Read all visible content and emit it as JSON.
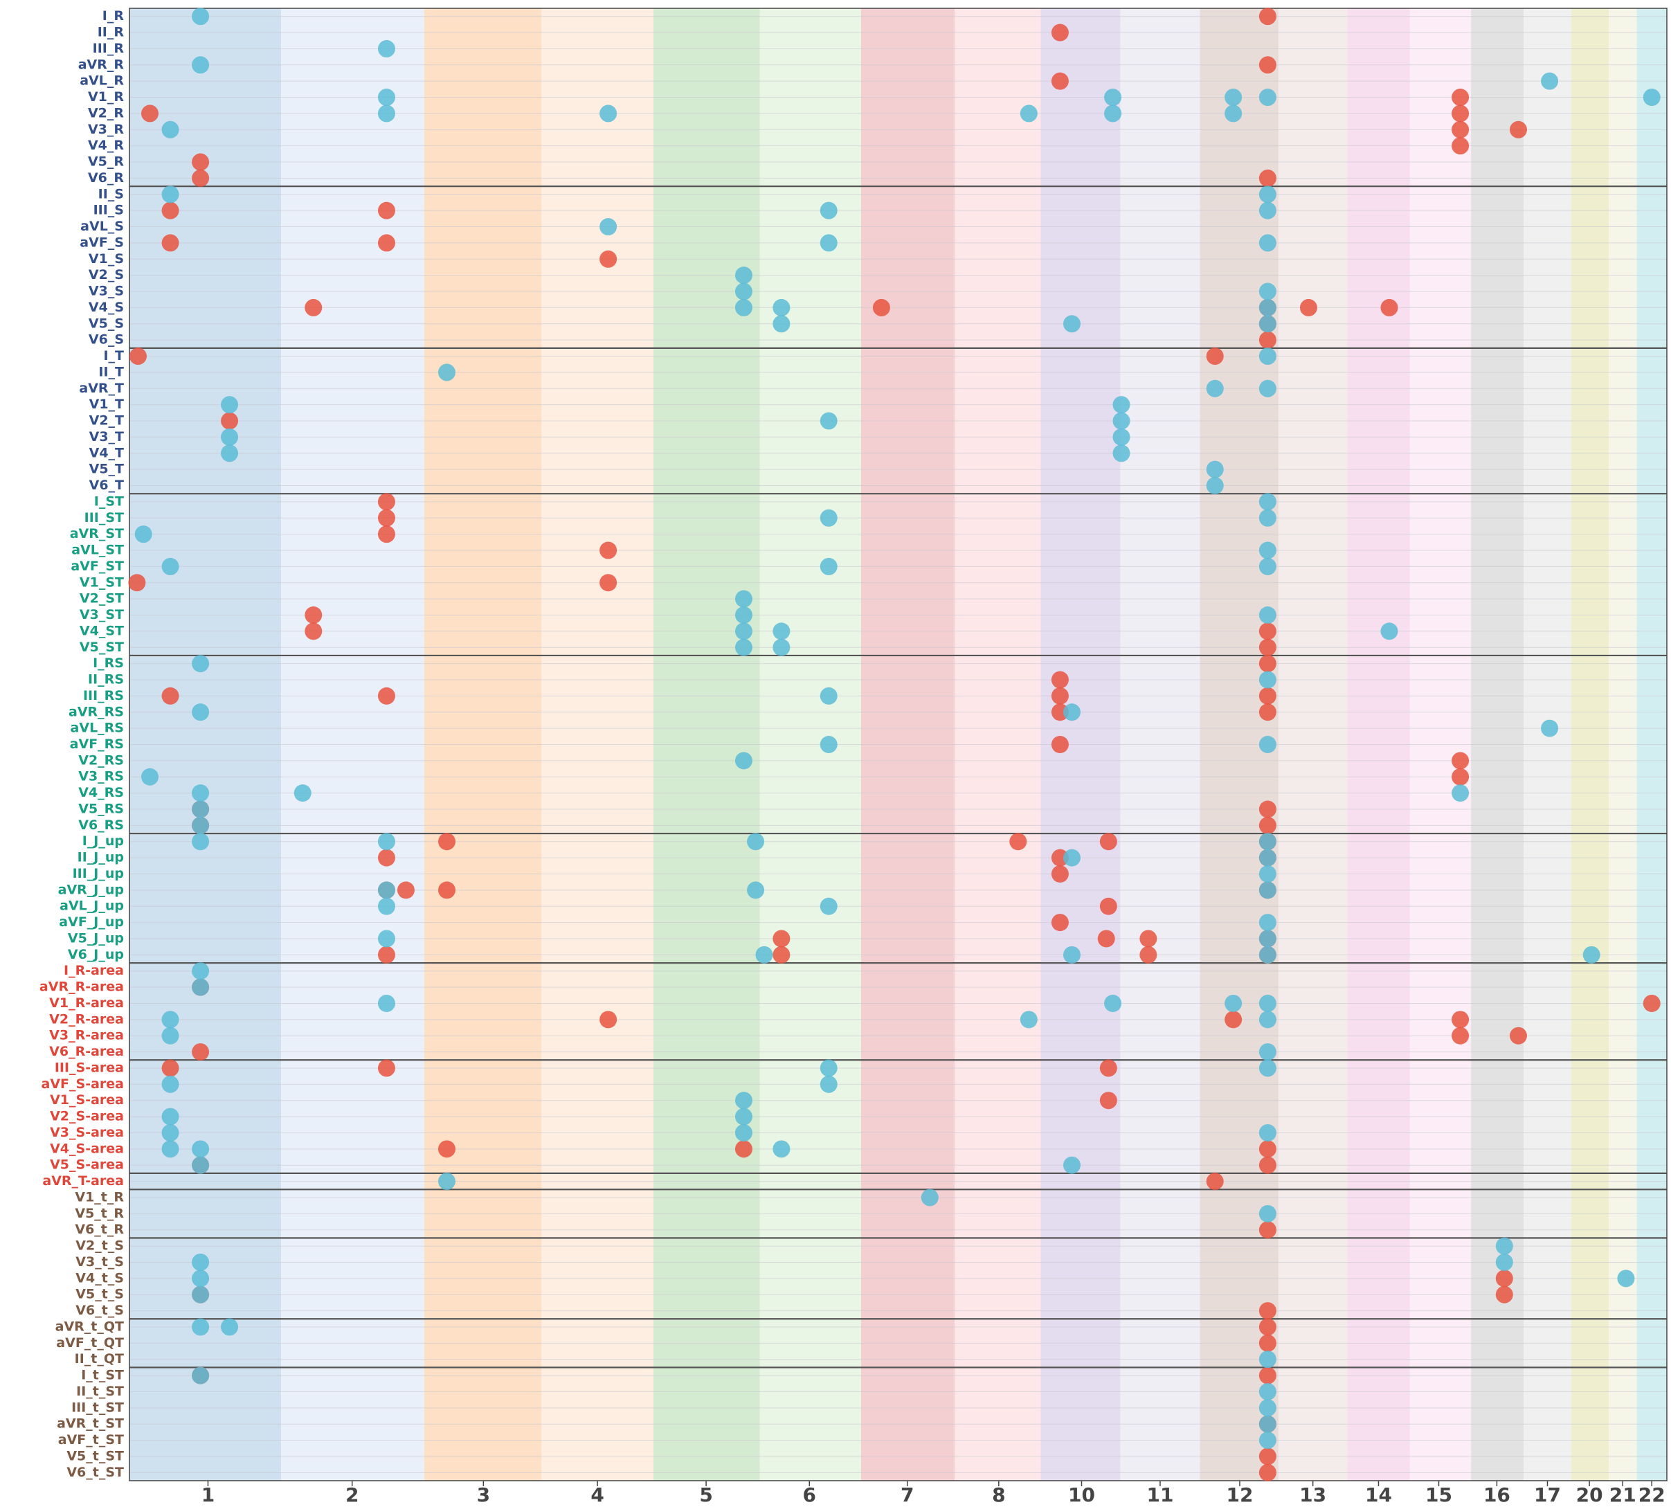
{
  "chart_data": {
    "type": "scatter",
    "xlim": [
      120,
      1549
    ],
    "xticks": [
      {
        "value": 193,
        "label": "1"
      },
      {
        "value": 327,
        "label": "2"
      },
      {
        "value": 449,
        "label": "3"
      },
      {
        "value": 555,
        "label": "4"
      },
      {
        "value": 656,
        "label": "5"
      },
      {
        "value": 752,
        "label": "6"
      },
      {
        "value": 843,
        "label": "7"
      },
      {
        "value": 928,
        "label": "8"
      },
      {
        "value": 1005,
        "label": "10"
      },
      {
        "value": 1078,
        "label": "11"
      },
      {
        "value": 1152,
        "label": "12"
      },
      {
        "value": 1220,
        "label": "13"
      },
      {
        "value": 1281,
        "label": "14"
      },
      {
        "value": 1337,
        "label": "15"
      },
      {
        "value": 1391,
        "label": "16"
      },
      {
        "value": 1438,
        "label": "17"
      },
      {
        "value": 1477,
        "label": "20"
      },
      {
        "value": 1508,
        "label": "21"
      },
      {
        "value": 1535,
        "label": "22"
      }
    ],
    "x_bands": [
      {
        "from": 120,
        "to": 261,
        "color": "#cfe0ef"
      },
      {
        "from": 261,
        "to": 394,
        "color": "#eaf0f9"
      },
      {
        "from": 394,
        "to": 503,
        "color": "#fde0c6"
      },
      {
        "from": 503,
        "to": 607,
        "color": "#fdeee1"
      },
      {
        "from": 607,
        "to": 706,
        "color": "#d5ebd1"
      },
      {
        "from": 706,
        "to": 800,
        "color": "#eaf6e5"
      },
      {
        "from": 800,
        "to": 887,
        "color": "#f4cfd1"
      },
      {
        "from": 887,
        "to": 967,
        "color": "#fde7e9"
      },
      {
        "from": 967,
        "to": 1041,
        "color": "#e4dcef"
      },
      {
        "from": 1041,
        "to": 1115,
        "color": "#f0eef5"
      },
      {
        "from": 1115,
        "to": 1188,
        "color": "#e8dcd9"
      },
      {
        "from": 1188,
        "to": 1252,
        "color": "#f3ecea"
      },
      {
        "from": 1252,
        "to": 1310,
        "color": "#f8dff0"
      },
      {
        "from": 1310,
        "to": 1367,
        "color": "#fcedf6"
      },
      {
        "from": 1367,
        "to": 1416,
        "color": "#e2e2e2"
      },
      {
        "from": 1416,
        "to": 1460,
        "color": "#f0f0f0"
      },
      {
        "from": 1460,
        "to": 1495,
        "color": "#efefcf"
      },
      {
        "from": 1495,
        "to": 1521,
        "color": "#f5f5e8"
      },
      {
        "from": 1521,
        "to": 1549,
        "color": "#d3eef1"
      }
    ],
    "row_groups": [
      {
        "color": "#34508a",
        "rows": [
          "I_R",
          "II_R",
          "III_R",
          "aVR_R",
          "aVL_R",
          "V1_R",
          "V2_R",
          "V3_R",
          "V4_R",
          "V5_R",
          "V6_R"
        ]
      },
      {
        "color": "#34508a",
        "rows": [
          "II_S",
          "III_S",
          "aVL_S",
          "aVF_S",
          "V1_S",
          "V2_S",
          "V3_S",
          "V4_S",
          "V5_S",
          "V6_S"
        ]
      },
      {
        "color": "#34508a",
        "rows": [
          "I_T",
          "II_T",
          "aVR_T",
          "V1_T",
          "V2_T",
          "V3_T",
          "V4_T",
          "V5_T",
          "V6_T"
        ]
      },
      {
        "color": "#179e83",
        "rows": [
          "I_ST",
          "III_ST",
          "aVR_ST",
          "aVL_ST",
          "aVF_ST",
          "V1_ST",
          "V2_ST",
          "V3_ST",
          "V4_ST",
          "V5_ST"
        ]
      },
      {
        "color": "#179e83",
        "rows": [
          "I_RS",
          "II_RS",
          "III_RS",
          "aVR_RS",
          "aVL_RS",
          "aVF_RS",
          "V2_RS",
          "V3_RS",
          "V4_RS",
          "V5_RS",
          "V6_RS"
        ]
      },
      {
        "color": "#179e83",
        "rows": [
          "I_J_up",
          "II_J_up",
          "III_J_up",
          "aVR_J_up",
          "aVL_J_up",
          "aVF_J_up",
          "V5_J_up",
          "V6_J_up"
        ]
      },
      {
        "color": "#e0463a",
        "rows": [
          "I_R-area",
          "aVR_R-area",
          "V1_R-area",
          "V2_R-area",
          "V3_R-area",
          "V6_R-area"
        ]
      },
      {
        "color": "#e0463a",
        "rows": [
          "III_S-area",
          "aVF_S-area",
          "V1_S-area",
          "V2_S-area",
          "V3_S-area",
          "V4_S-area",
          "V5_S-area"
        ]
      },
      {
        "color": "#e0463a",
        "rows": [
          "aVR_T-area"
        ]
      },
      {
        "color": "#7d5a44",
        "rows": [
          "V1_t_R",
          "V5_t_R",
          "V6_t_R"
        ]
      },
      {
        "color": "#7d5a44",
        "rows": [
          "V2_t_S",
          "V3_t_S",
          "V4_t_S",
          "V5_t_S",
          "V6_t_S"
        ]
      },
      {
        "color": "#7d5a44",
        "rows": [
          "aVR_t_QT",
          "aVF_t_QT",
          "II_t_QT"
        ]
      },
      {
        "color": "#7d5a44",
        "rows": [
          "I_t_ST",
          "II_t_ST",
          "III_t_ST",
          "aVR_t_ST",
          "aVF_t_ST",
          "V5_t_ST",
          "V6_t_ST"
        ]
      }
    ],
    "series": [
      {
        "color": "#e8533f",
        "x_by_row": {
          "I_R": [
            1178
          ],
          "II_R": [
            985
          ],
          "aVR_R": [
            1178
          ],
          "aVL_R": [
            985
          ],
          "V1_R": [
            1357
          ],
          "V2_R": [
            139,
            1357
          ],
          "V3_R": [
            1357,
            1411
          ],
          "V4_R": [
            1357
          ],
          "V5_R": [
            186
          ],
          "V6_R": [
            186,
            1178
          ],
          "III_S": [
            158,
            359
          ],
          "aVF_S": [
            158,
            359
          ],
          "V1_S": [
            565
          ],
          "V4_S": [
            291,
            819,
            1178,
            1216,
            1291
          ],
          "V5_S": [
            1178
          ],
          "V6_S": [
            1178
          ],
          "I_T": [
            128,
            1129
          ],
          "V2_T": [
            213
          ],
          "I_ST": [
            359
          ],
          "III_ST": [
            359
          ],
          "aVR_ST": [
            359
          ],
          "aVL_ST": [
            565
          ],
          "V1_ST": [
            127,
            565
          ],
          "V3_ST": [
            291
          ],
          "V4_ST": [
            291,
            1178
          ],
          "V5_ST": [
            1178
          ],
          "I_RS": [
            1178
          ],
          "II_RS": [
            985
          ],
          "III_RS": [
            158,
            359,
            985,
            1178
          ],
          "aVR_RS": [
            985,
            1178
          ],
          "aVF_RS": [
            985
          ],
          "V2_RS": [
            1357
          ],
          "V3_RS": [
            1357
          ],
          "V5_RS": [
            186,
            1178
          ],
          "V6_RS": [
            186,
            1178
          ],
          "I_J_up": [
            415,
            946,
            1030,
            1178
          ],
          "II_J_up": [
            359,
            985,
            1178
          ],
          "III_J_up": [
            985
          ],
          "aVR_J_up": [
            359,
            377,
            415,
            1178
          ],
          "aVL_J_up": [
            1030
          ],
          "aVF_J_up": [
            985
          ],
          "V5_J_up": [
            726,
            1028,
            1067,
            1178
          ],
          "V6_J_up": [
            359,
            726,
            1067,
            1178
          ],
          "aVR_R-area": [
            186
          ],
          "V1_R-area": [
            1535
          ],
          "V2_R-area": [
            565,
            1146,
            1357
          ],
          "V3_R-area": [
            1357,
            1411
          ],
          "V6_R-area": [
            186
          ],
          "III_S-area": [
            158,
            359,
            1030
          ],
          "V1_S-area": [
            1030
          ],
          "V4_S-area": [
            415,
            691,
            1178
          ],
          "V5_S-area": [
            186,
            1178
          ],
          "aVR_T-area": [
            1129
          ],
          "V6_t_R": [
            1178
          ],
          "V4_t_S": [
            1398
          ],
          "V5_t_S": [
            186,
            1398
          ],
          "V6_t_S": [
            1178
          ],
          "aVR_t_QT": [
            1178
          ],
          "aVF_t_QT": [
            1178
          ],
          "I_t_ST": [
            186,
            1178
          ],
          "aVR_t_ST": [
            1178
          ],
          "V5_t_ST": [
            1178
          ],
          "V6_t_ST": [
            1178
          ]
        }
      },
      {
        "color": "#5bbcd6",
        "x_by_row": {
          "I_R": [
            186
          ],
          "III_R": [
            359
          ],
          "aVR_R": [
            186
          ],
          "aVL_R": [
            1440
          ],
          "V1_R": [
            359,
            1034,
            1146,
            1178,
            1535
          ],
          "V2_R": [
            359,
            565,
            956,
            1034,
            1146
          ],
          "V3_R": [
            158
          ],
          "II_S": [
            158,
            1178
          ],
          "III_S": [
            770,
            1178
          ],
          "aVL_S": [
            565
          ],
          "aVF_S": [
            770,
            1178
          ],
          "V2_S": [
            691
          ],
          "V3_S": [
            691,
            1178
          ],
          "V4_S": [
            691,
            726,
            1178
          ],
          "V5_S": [
            726,
            996,
            1178
          ],
          "I_T": [
            1178
          ],
          "II_T": [
            415
          ],
          "aVR_T": [
            1129,
            1178
          ],
          "V1_T": [
            213,
            1042
          ],
          "V2_T": [
            770,
            1042
          ],
          "V3_T": [
            213,
            1042
          ],
          "V4_T": [
            213,
            1042
          ],
          "V5_T": [
            1129
          ],
          "V6_T": [
            1129
          ],
          "I_ST": [
            1178
          ],
          "III_ST": [
            770,
            1178
          ],
          "aVR_ST": [
            133
          ],
          "aVL_ST": [
            1178
          ],
          "aVF_ST": [
            158,
            770,
            1178
          ],
          "V2_ST": [
            691
          ],
          "V3_ST": [
            691,
            1178
          ],
          "V4_ST": [
            691,
            726,
            1291
          ],
          "V5_ST": [
            691,
            726
          ],
          "I_RS": [
            186
          ],
          "II_RS": [
            1178
          ],
          "III_RS": [
            770
          ],
          "aVR_RS": [
            186,
            996
          ],
          "aVL_RS": [
            1440
          ],
          "aVF_RS": [
            770,
            1178
          ],
          "V2_RS": [
            691
          ],
          "V3_RS": [
            139
          ],
          "V4_RS": [
            186,
            281,
            1357
          ],
          "V5_RS": [
            186
          ],
          "V6_RS": [
            186
          ],
          "I_J_up": [
            186,
            359,
            702,
            1178
          ],
          "II_J_up": [
            996,
            1178
          ],
          "III_J_up": [
            1178
          ],
          "aVR_J_up": [
            359,
            702,
            1178
          ],
          "aVL_J_up": [
            359,
            770
          ],
          "aVF_J_up": [
            1178
          ],
          "V5_J_up": [
            359,
            1178
          ],
          "V6_J_up": [
            710,
            996,
            1178,
            1479
          ],
          "I_R-area": [
            186
          ],
          "aVR_R-area": [
            186
          ],
          "V1_R-area": [
            359,
            1034,
            1146,
            1178
          ],
          "V2_R-area": [
            158,
            956,
            1178
          ],
          "V3_R-area": [
            158
          ],
          "V6_R-area": [
            1178
          ],
          "III_S-area": [
            770,
            1178
          ],
          "aVF_S-area": [
            158,
            770
          ],
          "V1_S-area": [
            691
          ],
          "V2_S-area": [
            158,
            691
          ],
          "V3_S-area": [
            158,
            691,
            1178
          ],
          "V4_S-area": [
            158,
            186,
            726
          ],
          "V5_S-area": [
            186,
            996
          ],
          "aVR_T-area": [
            415
          ],
          "V1_t_R": [
            864
          ],
          "V5_t_R": [
            1178
          ],
          "V2_t_S": [
            1398
          ],
          "V3_t_S": [
            186,
            1398
          ],
          "V4_t_S": [
            186,
            1511
          ],
          "V5_t_S": [
            186
          ],
          "aVR_t_QT": [
            186,
            213
          ],
          "II_t_QT": [
            1178
          ],
          "I_t_ST": [
            186
          ],
          "II_t_ST": [
            1178
          ],
          "III_t_ST": [
            1178
          ],
          "aVR_t_ST": [
            1178
          ],
          "aVF_t_ST": [
            1178
          ]
        }
      }
    ]
  }
}
